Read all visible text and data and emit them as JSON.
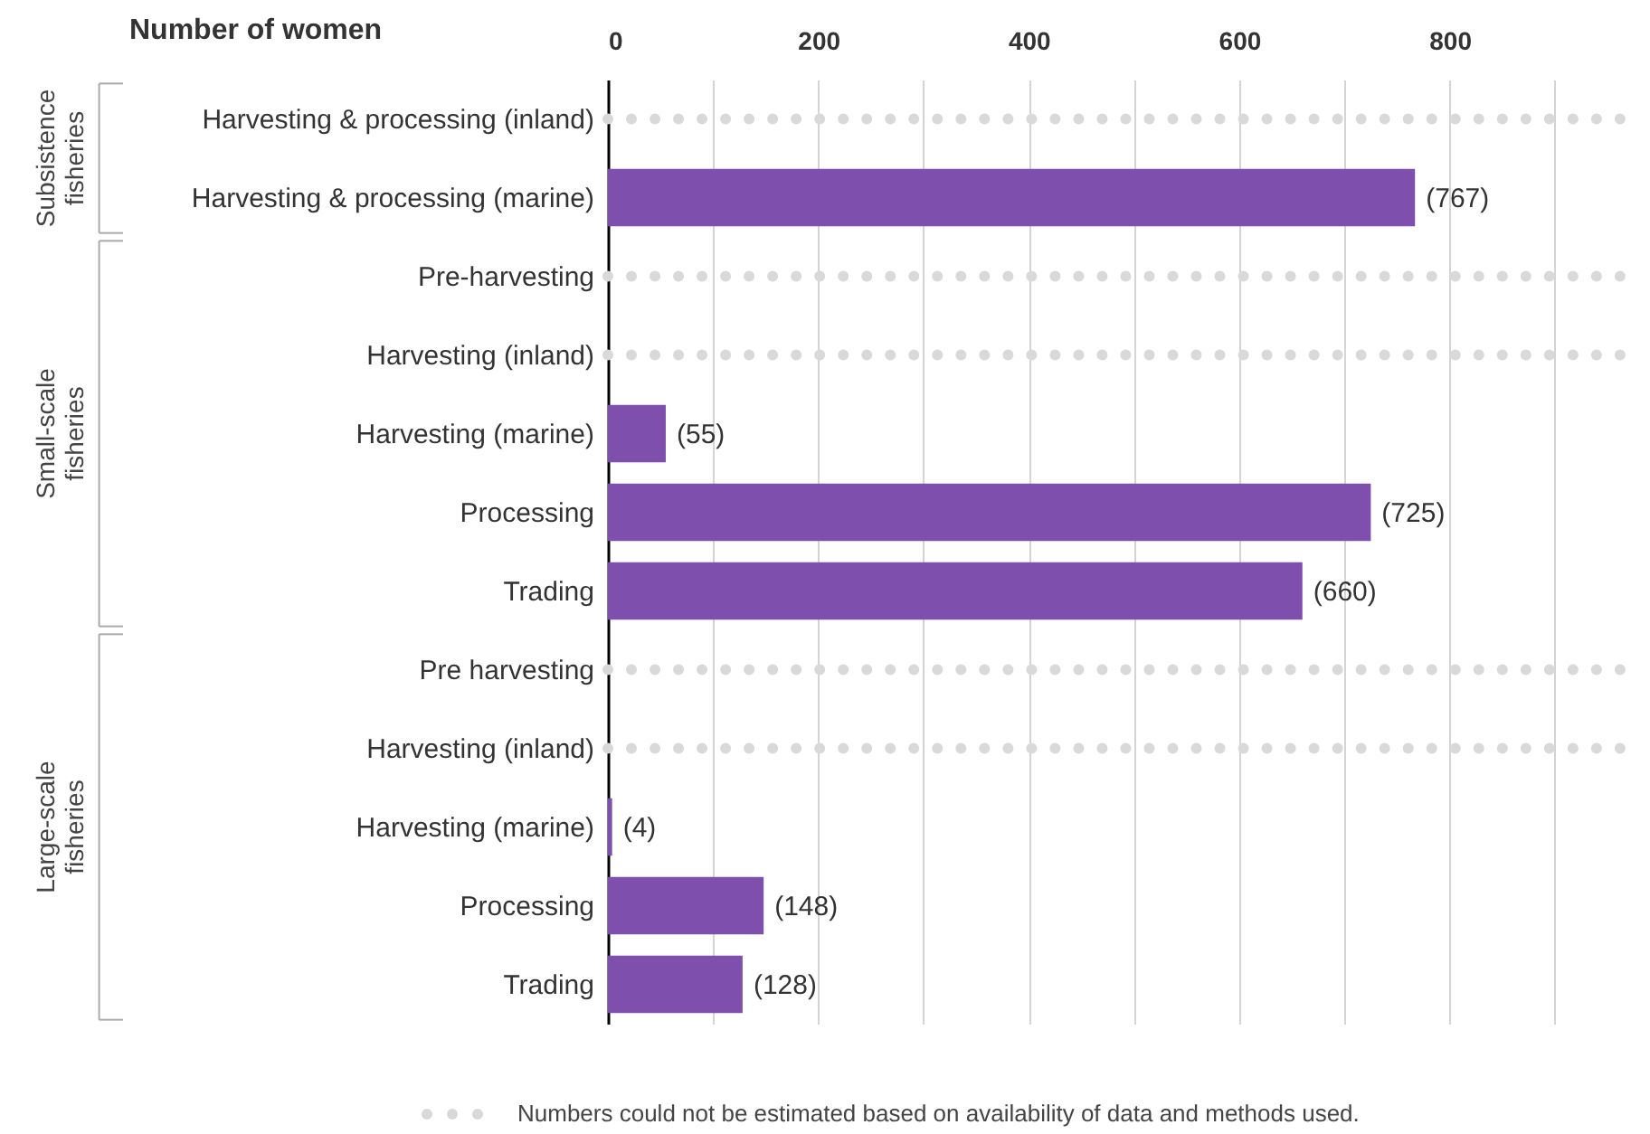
{
  "chart_data": {
    "type": "bar",
    "orientation": "horizontal",
    "xlabel": "Number of women",
    "categories": [
      "Harvesting & processing (inland)",
      "Harvesting & processing (marine)",
      "Pre-harvesting",
      "Harvesting (inland)",
      "Harvesting (marine)",
      "Processing",
      "Trading",
      "Pre harvesting",
      "Harvesting (inland)",
      "Harvesting (marine)",
      "Processing",
      "Trading"
    ],
    "values": [
      null,
      767,
      null,
      null,
      55,
      725,
      660,
      null,
      null,
      4,
      148,
      128
    ],
    "value_labels": [
      null,
      "(767)",
      null,
      null,
      "(55)",
      "(725)",
      "(660)",
      null,
      null,
      "(4)",
      "(148)",
      "(128)"
    ],
    "color": "#7f4fad",
    "xlim": [
      0,
      980
    ],
    "xticks": [
      0,
      {
        "value": 100,
        "label": null
      },
      200,
      {
        "value": 300,
        "label": null
      },
      400,
      {
        "value": 500,
        "label": null
      },
      600,
      {
        "value": 700,
        "label": null
      },
      800,
      {
        "value": 900,
        "label": null
      }
    ],
    "grid": "x",
    "annotations": [
      "Subsistence fisheries",
      "Small-scale fisheries",
      "Large-scale fisheries",
      "Numbers could not be estimated based on availability of data and methods used."
    ]
  }
}
